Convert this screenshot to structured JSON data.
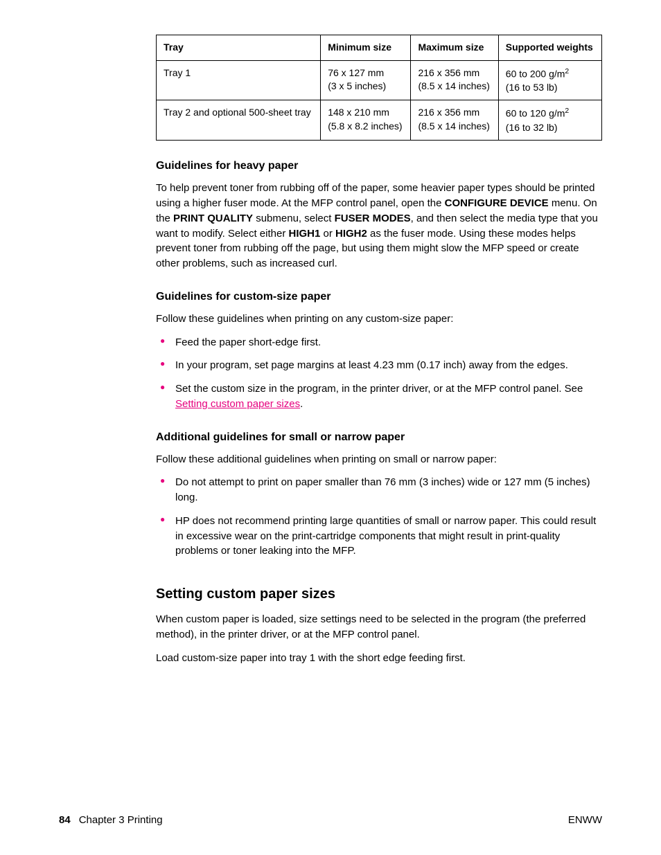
{
  "table": {
    "headers": [
      "Tray",
      "Minimum size",
      "Maximum size",
      "Supported weights"
    ],
    "rows": [
      {
        "tray": "Tray 1",
        "min_l1": "76 x  127 mm",
        "min_l2": "(3 x 5 inches)",
        "max_l1": "216 x 356 mm",
        "max_l2": "(8.5 x 14 inches)",
        "wt_l1_pre": "60 to 200 g/m",
        "wt_l1_sup": "2",
        "wt_l2": "(16 to 53 lb)"
      },
      {
        "tray": "Tray 2 and optional 500-sheet tray",
        "min_l1": "148 x 210 mm",
        "min_l2": "(5.8 x 8.2 inches)",
        "max_l1": "216 x 356 mm",
        "max_l2": "(8.5 x 14 inches)",
        "wt_l1_pre": "60 to 120 g/m",
        "wt_l1_sup": "2",
        "wt_l2": "(16 to 32 lb)"
      }
    ]
  },
  "section1": {
    "heading": "Guidelines for heavy paper",
    "p1_a": "To help prevent toner from rubbing off of the paper, some heavier paper types should be printed using a higher fuser mode. At the MFP control panel, open the ",
    "p1_b": "CONFIGURE DEVICE",
    "p1_c": " menu. On the ",
    "p1_d": "PRINT QUALITY",
    "p1_e": " submenu, select ",
    "p1_f": "FUSER MODES",
    "p1_g": ", and then select the media type that you want to modify. Select either ",
    "p1_h": "HIGH1",
    "p1_i": " or ",
    "p1_j": "HIGH2",
    "p1_k": " as the fuser mode. Using these modes helps prevent toner from rubbing off the page, but using them might slow the MFP speed or create other problems, such as increased curl."
  },
  "section2": {
    "heading": "Guidelines for custom-size paper",
    "intro": "Follow these guidelines when printing on any custom-size paper:",
    "bullets": [
      {
        "text": "Feed the paper short-edge first."
      },
      {
        "text": "In your program, set page margins at least 4.23 mm (0.17 inch) away from the edges."
      }
    ],
    "bullet3_a": "Set the custom size in the program, in the printer driver, or at the MFP control panel. See ",
    "bullet3_link": "Setting custom paper sizes",
    "bullet3_c": "."
  },
  "section3": {
    "heading": "Additional guidelines for small or narrow paper",
    "intro": "Follow these additional guidelines when printing on small or narrow paper:",
    "bullets": [
      {
        "text": "Do not attempt to print on paper smaller than 76 mm (3 inches) wide or 127 mm (5 inches) long."
      },
      {
        "text": "HP does not recommend printing large quantities of small or narrow paper. This could result in excessive wear on the print-cartridge components that might result in print-quality problems or toner leaking into the MFP."
      }
    ]
  },
  "section4": {
    "heading": "Setting custom paper sizes",
    "p1": "When custom paper is loaded, size settings need to be selected in the program (the preferred method), in the printer driver, or at the MFP control panel.",
    "p2": "Load custom-size paper into tray 1 with the short edge feeding first."
  },
  "footer": {
    "page": "84",
    "chapter": "Chapter 3  Printing",
    "right": "ENWW"
  }
}
